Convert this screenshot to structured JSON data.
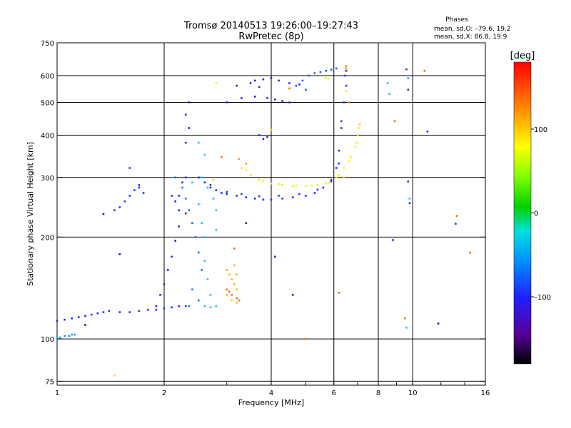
{
  "title": "Tromsø 20140513 19:26:00–19:27:43",
  "subtitle": "RwPretec (8p)",
  "stats": {
    "heading": "Phases",
    "o_line": "mean, sd,O: –79.6, 19.2",
    "x_line": "mean, sd,X:  86.8, 19.9"
  },
  "chart_data": {
    "type": "scatter",
    "xlabel": "Frequency [MHz]",
    "ylabel": "Stationary phase Virtual Height [km]",
    "xscale": "log",
    "yscale": "log",
    "xlim": [
      1,
      16
    ],
    "ylim": [
      73,
      750
    ],
    "xticks": [
      1,
      2,
      4,
      6,
      8,
      10,
      16
    ],
    "xtick_labels": [
      "1",
      "2",
      "4",
      "6",
      "8",
      "10",
      "16"
    ],
    "yticks": [
      75,
      100,
      200,
      300,
      400,
      500,
      600,
      750
    ],
    "ytick_labels": [
      "75",
      "100",
      "200",
      "300",
      "400",
      "500",
      "600",
      "750"
    ],
    "grid": true,
    "colorbar": {
      "label": "[deg]",
      "range": [
        -180,
        180
      ],
      "ticks": [
        100,
        0,
        -100
      ],
      "tick_labels": [
        "100",
        "0",
        "–100"
      ]
    },
    "series": [
      {
        "phase": -95,
        "points": [
          [
            1.0,
            113
          ],
          [
            1.05,
            114
          ],
          [
            1.1,
            115
          ],
          [
            1.15,
            116
          ],
          [
            1.2,
            117
          ],
          [
            1.25,
            118
          ],
          [
            1.3,
            119
          ],
          [
            1.35,
            120
          ],
          [
            1.4,
            121
          ],
          [
            1.5,
            120
          ],
          [
            1.6,
            120
          ],
          [
            1.7,
            121
          ],
          [
            1.8,
            122
          ],
          [
            1.9,
            122
          ],
          [
            2.0,
            123
          ],
          [
            2.1,
            124
          ],
          [
            2.2,
            125
          ],
          [
            2.3,
            125
          ]
        ]
      },
      {
        "phase": -50,
        "points": [
          [
            1.0,
            101
          ],
          [
            1.02,
            101
          ],
          [
            1.05,
            102
          ],
          [
            1.08,
            102
          ],
          [
            1.1,
            103
          ],
          [
            1.12,
            103
          ]
        ]
      },
      {
        "phase": -100,
        "points": [
          [
            1.9,
            125
          ],
          [
            1.95,
            135
          ],
          [
            2.0,
            145
          ],
          [
            2.05,
            160
          ],
          [
            2.1,
            175
          ],
          [
            2.15,
            195
          ],
          [
            2.2,
            215
          ],
          [
            2.2,
            240
          ],
          [
            2.2,
            265
          ],
          [
            2.25,
            290
          ],
          [
            2.15,
            255
          ],
          [
            2.1,
            265
          ],
          [
            2.3,
            300
          ],
          [
            2.3,
            380
          ],
          [
            2.35,
            420
          ],
          [
            2.3,
            460
          ],
          [
            2.35,
            500
          ]
        ]
      },
      {
        "phase": -90,
        "points": [
          [
            1.5,
            245
          ],
          [
            1.55,
            255
          ],
          [
            1.6,
            265
          ],
          [
            1.65,
            275
          ],
          [
            1.7,
            285
          ],
          [
            1.45,
            240
          ],
          [
            1.6,
            320
          ],
          [
            1.7,
            280
          ],
          [
            1.75,
            270
          ]
        ]
      },
      {
        "phase": -95,
        "points": [
          [
            2.5,
            300
          ],
          [
            2.6,
            290
          ],
          [
            2.7,
            280
          ],
          [
            2.8,
            275
          ],
          [
            2.9,
            270
          ],
          [
            3.0,
            268
          ],
          [
            3.2,
            265
          ],
          [
            3.4,
            262
          ],
          [
            3.6,
            260
          ],
          [
            3.8,
            258
          ],
          [
            4.0,
            258
          ],
          [
            4.3,
            260
          ],
          [
            4.6,
            262
          ],
          [
            5.0,
            265
          ],
          [
            5.3,
            270
          ],
          [
            5.6,
            280
          ],
          [
            5.9,
            295
          ],
          [
            6.1,
            320
          ],
          [
            6.2,
            360
          ],
          [
            6.3,
            420
          ],
          [
            6.4,
            500
          ],
          [
            6.5,
            560
          ],
          [
            6.5,
            620
          ]
        ]
      },
      {
        "phase": -90,
        "points": [
          [
            2.5,
            300
          ],
          [
            2.7,
            285
          ],
          [
            3.0,
            272
          ],
          [
            3.3,
            268
          ],
          [
            3.7,
            264
          ],
          [
            4.2,
            265
          ],
          [
            4.8,
            268
          ],
          [
            5.4,
            276
          ],
          [
            5.9,
            292
          ],
          [
            6.2,
            330
          ],
          [
            6.3,
            440
          ],
          [
            6.45,
            600
          ]
        ]
      },
      {
        "phase": -30,
        "points": [
          [
            2.4,
            290
          ],
          [
            2.5,
            250
          ],
          [
            2.55,
            220
          ],
          [
            2.6,
            200
          ],
          [
            2.6,
            170
          ],
          [
            2.65,
            150
          ],
          [
            2.7,
            135
          ],
          [
            2.6,
            125
          ],
          [
            2.7,
            124
          ],
          [
            2.8,
            125
          ],
          [
            2.75,
            260
          ],
          [
            2.8,
            240
          ],
          [
            2.8,
            210
          ],
          [
            2.55,
            300
          ],
          [
            2.6,
            350
          ],
          [
            2.5,
            380
          ],
          [
            2.65,
            280
          ]
        ]
      },
      {
        "phase": -70,
        "points": [
          [
            2.15,
            300
          ],
          [
            2.25,
            280
          ],
          [
            2.3,
            260
          ],
          [
            2.35,
            240
          ],
          [
            2.4,
            220
          ],
          [
            2.45,
            200
          ],
          [
            2.5,
            180
          ],
          [
            2.55,
            160
          ],
          [
            2.4,
            140
          ],
          [
            2.5,
            130
          ],
          [
            2.35,
            125
          ]
        ]
      },
      {
        "phase": -100,
        "points": [
          [
            3.0,
            500
          ],
          [
            3.3,
            515
          ],
          [
            3.6,
            520
          ],
          [
            3.9,
            515
          ],
          [
            4.1,
            510
          ],
          [
            4.3,
            505
          ],
          [
            4.5,
            500
          ],
          [
            3.2,
            560
          ],
          [
            3.5,
            570
          ],
          [
            3.8,
            585
          ],
          [
            4.0,
            590
          ],
          [
            4.2,
            580
          ],
          [
            4.5,
            570
          ],
          [
            4.8,
            565
          ],
          [
            3.7,
            555
          ],
          [
            3.6,
            580
          ]
        ]
      },
      {
        "phase": 90,
        "points": [
          [
            3.3,
            320
          ],
          [
            3.5,
            305
          ],
          [
            3.7,
            295
          ],
          [
            4.0,
            288
          ],
          [
            4.3,
            285
          ],
          [
            4.6,
            283
          ],
          [
            5.0,
            283
          ],
          [
            5.4,
            285
          ],
          [
            5.8,
            290
          ],
          [
            6.1,
            300
          ],
          [
            6.4,
            320
          ],
          [
            6.7,
            345
          ],
          [
            6.9,
            370
          ],
          [
            7.0,
            400
          ],
          [
            7.1,
            430
          ]
        ]
      },
      {
        "phase": 70,
        "points": [
          [
            3.4,
            315
          ],
          [
            3.8,
            293
          ],
          [
            4.2,
            287
          ],
          [
            4.7,
            284
          ],
          [
            5.2,
            284
          ],
          [
            5.7,
            288
          ],
          [
            6.2,
            305
          ],
          [
            6.6,
            335
          ],
          [
            6.95,
            380
          ],
          [
            7.05,
            420
          ]
        ]
      },
      {
        "phase": 110,
        "points": [
          [
            3.0,
            160
          ],
          [
            3.05,
            155
          ],
          [
            3.1,
            150
          ],
          [
            3.15,
            145
          ],
          [
            3.2,
            140
          ],
          [
            3.0,
            135
          ],
          [
            3.1,
            130
          ],
          [
            3.2,
            128
          ],
          [
            3.15,
            165
          ],
          [
            3.2,
            155
          ]
        ]
      },
      {
        "phase": 140,
        "points": [
          [
            3.0,
            140
          ],
          [
            3.1,
            135
          ],
          [
            3.2,
            132
          ],
          [
            3.25,
            130
          ],
          [
            3.05,
            138
          ]
        ]
      },
      {
        "phase": 125,
        "points": [
          [
            3.25,
            340
          ],
          [
            3.4,
            330
          ],
          [
            6.5,
            630
          ],
          [
            6.5,
            640
          ],
          [
            6.6,
            500
          ]
        ]
      },
      {
        "phase": -80,
        "points": [
          [
            5.1,
            600
          ],
          [
            5.3,
            610
          ],
          [
            5.5,
            615
          ],
          [
            5.7,
            620
          ],
          [
            5.9,
            625
          ],
          [
            6.1,
            630
          ],
          [
            4.7,
            560
          ],
          [
            4.9,
            580
          ],
          [
            5.0,
            545
          ]
        ]
      },
      {
        "phase": 70,
        "points": [
          [
            5.7,
            590
          ],
          [
            5.8,
            588
          ],
          [
            6.5,
            540
          ],
          [
            2.8,
            570
          ]
        ]
      },
      {
        "phase": -100,
        "points": [
          [
            3.7,
            400
          ],
          [
            3.8,
            390
          ],
          [
            3.9,
            395
          ]
        ]
      },
      {
        "phase": -95,
        "points": [
          [
            9.6,
            626
          ],
          [
            9.7,
            292
          ],
          [
            9.8,
            252
          ],
          [
            13.2,
            219
          ],
          [
            11.0,
            410
          ],
          [
            8.8,
            196
          ],
          [
            9.7,
            545
          ]
        ]
      },
      {
        "phase": -30,
        "points": [
          [
            8.5,
            570
          ],
          [
            8.6,
            530
          ],
          [
            9.7,
            590
          ],
          [
            9.6,
            108
          ],
          [
            9.8,
            260
          ]
        ]
      },
      {
        "phase": 140,
        "points": [
          [
            8.9,
            440
          ],
          [
            9.5,
            115
          ],
          [
            10.8,
            620
          ],
          [
            13.3,
            231
          ],
          [
            14.5,
            180
          ],
          [
            4.98,
            100
          ],
          [
            6.2,
            137
          ],
          [
            2.9,
            345
          ],
          [
            3.15,
            185
          ],
          [
            4.5,
            550
          ]
        ]
      },
      {
        "phase": -140,
        "points": [
          [
            1.35,
            234
          ],
          [
            2.3,
            235
          ],
          [
            3.4,
            220
          ],
          [
            4.1,
            175
          ],
          [
            4.6,
            135
          ],
          [
            1.5,
            178
          ],
          [
            11.8,
            111
          ],
          [
            1.2,
            110
          ]
        ]
      },
      {
        "phase": 100,
        "points": [
          [
            1.45,
            78
          ],
          [
            4.0,
            415
          ],
          [
            6.4,
            300
          ],
          [
            7.1,
            430
          ],
          [
            2.75,
            295
          ]
        ]
      }
    ]
  }
}
